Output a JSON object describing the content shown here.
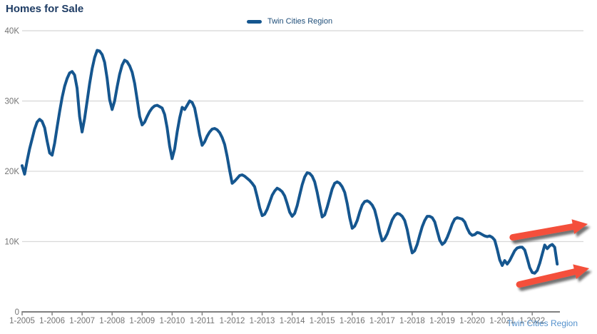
{
  "chart_title": "Homes for Sale",
  "legend": {
    "label": "Twin Cities Region"
  },
  "source_label": "Twin Cities Region",
  "colors": {
    "series_line": "#15568f",
    "title": "#1e3c64",
    "legend_text": "#1f4e79",
    "source_text": "#5592cd",
    "gridline": "#d9d9d9",
    "axis": "#808080",
    "tick_label": "#737373",
    "arrow": "#f4503a"
  },
  "chart_data": {
    "type": "line",
    "title": "Homes for Sale",
    "xlabel": "",
    "ylabel": "",
    "frequency": "monthly",
    "x_start": "2005-01",
    "x_end": "2022-11",
    "ylim": [
      0,
      40000
    ],
    "grid": "horizontal",
    "legend_position": "top-center",
    "y_ticks": [
      {
        "value": 0,
        "label": "0"
      },
      {
        "value": 10,
        "label": "10K"
      },
      {
        "value": 20,
        "label": "20K"
      },
      {
        "value": 30,
        "label": "30K"
      },
      {
        "value": 40,
        "label": "40K"
      }
    ],
    "x_ticks": [
      {
        "year": 2005,
        "label": "1-2005"
      },
      {
        "year": 2006,
        "label": "1-2006"
      },
      {
        "year": 2007,
        "label": "1-2007"
      },
      {
        "year": 2008,
        "label": "1-2008"
      },
      {
        "year": 2009,
        "label": "1-2009"
      },
      {
        "year": 2010,
        "label": "1-2010"
      },
      {
        "year": 2011,
        "label": "1-2011"
      },
      {
        "year": 2012,
        "label": "1-2012"
      },
      {
        "year": 2013,
        "label": "1-2013"
      },
      {
        "year": 2014,
        "label": "1-2014"
      },
      {
        "year": 2015,
        "label": "1-2015"
      },
      {
        "year": 2016,
        "label": "1-2016"
      },
      {
        "year": 2017,
        "label": "1-2017"
      },
      {
        "year": 2018,
        "label": "1-2018"
      },
      {
        "year": 2019,
        "label": "1-2019"
      },
      {
        "year": 2020,
        "label": "1-2020"
      },
      {
        "year": 2021,
        "label": "1-2021"
      },
      {
        "year": 2022,
        "label": "1-2022"
      }
    ],
    "series": [
      {
        "name": "Twin Cities Region",
        "color": "#15568f",
        "start_year": 2005,
        "values_thousands": [
          20.8,
          19.6,
          21.5,
          23.2,
          24.6,
          26.0,
          27.0,
          27.4,
          27.1,
          26.2,
          24.3,
          22.6,
          22.3,
          24.0,
          26.3,
          28.5,
          30.5,
          32.1,
          33.2,
          34.0,
          34.2,
          33.7,
          31.8,
          27.8,
          25.6,
          27.5,
          30.0,
          32.5,
          34.6,
          36.2,
          37.2,
          37.1,
          36.6,
          35.5,
          33.2,
          30.2,
          28.8,
          30.0,
          32.0,
          33.8,
          35.1,
          35.8,
          35.6,
          35.0,
          34.1,
          32.5,
          30.2,
          27.8,
          26.6,
          27.0,
          27.8,
          28.5,
          29.0,
          29.3,
          29.4,
          29.2,
          29.0,
          28.1,
          26.2,
          23.6,
          21.8,
          23.2,
          25.6,
          27.6,
          29.1,
          28.8,
          29.4,
          30.0,
          29.8,
          29.0,
          27.2,
          25.2,
          23.7,
          24.2,
          25.0,
          25.6,
          26.0,
          26.1,
          25.9,
          25.5,
          24.8,
          23.8,
          22.1,
          20.1,
          18.3,
          18.6,
          19.0,
          19.4,
          19.5,
          19.3,
          19.0,
          18.7,
          18.3,
          17.8,
          16.4,
          14.8,
          13.7,
          13.9,
          14.6,
          15.6,
          16.6,
          17.2,
          17.6,
          17.4,
          17.1,
          16.5,
          15.4,
          14.2,
          13.6,
          14.0,
          15.1,
          16.6,
          18.1,
          19.2,
          19.8,
          19.7,
          19.3,
          18.5,
          17.0,
          15.2,
          13.5,
          13.8,
          14.9,
          16.2,
          17.5,
          18.3,
          18.5,
          18.3,
          17.8,
          17.0,
          15.4,
          13.4,
          11.9,
          12.2,
          13.0,
          14.2,
          15.2,
          15.7,
          15.8,
          15.6,
          15.2,
          14.5,
          13.1,
          11.4,
          10.1,
          10.4,
          11.1,
          12.1,
          13.1,
          13.7,
          14.0,
          13.9,
          13.6,
          13.0,
          11.7,
          9.9,
          8.4,
          8.7,
          9.6,
          10.9,
          12.1,
          13.0,
          13.6,
          13.6,
          13.4,
          12.8,
          11.5,
          10.2,
          9.6,
          9.9,
          10.6,
          11.5,
          12.5,
          13.2,
          13.4,
          13.3,
          13.2,
          12.8,
          11.9,
          11.2,
          10.9,
          11.0,
          11.3,
          11.2,
          11.0,
          10.8,
          10.7,
          10.8,
          10.6,
          10.2,
          8.9,
          7.4,
          6.6,
          7.3,
          6.8,
          7.3,
          8.0,
          8.7,
          9.1,
          9.2,
          9.2,
          8.8,
          7.6,
          6.3,
          5.6,
          5.5,
          5.9,
          6.9,
          8.2,
          9.5,
          9.0,
          9.4,
          9.6,
          9.2,
          6.8
        ]
      }
    ],
    "annotations": [
      {
        "type": "arrow",
        "color": "#f4503a",
        "from_year": 2021.35,
        "from_value_thousands": 10.6,
        "to_year": 2023.85,
        "to_value_thousands": 12.5
      },
      {
        "type": "arrow",
        "color": "#f4503a",
        "from_year": 2021.57,
        "from_value_thousands": 3.9,
        "to_year": 2023.9,
        "to_value_thousands": 6.2
      }
    ]
  }
}
